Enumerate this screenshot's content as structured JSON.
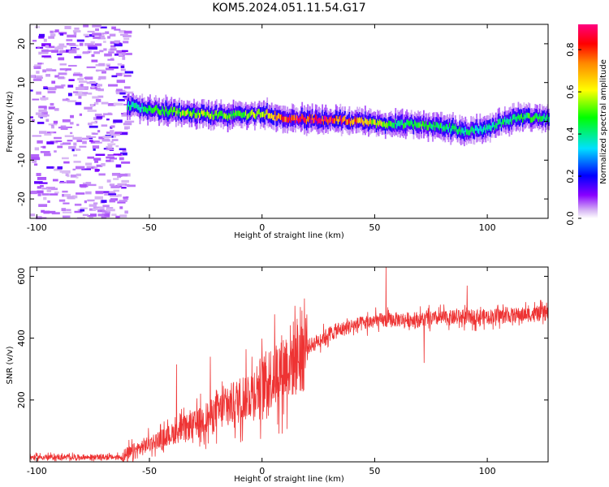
{
  "title": "KOM5.2024.051.11.54.G17",
  "chart_data": [
    {
      "type": "heatmap",
      "xlabel": "Height of straight line (km)",
      "ylabel": "Frequency (Hz)",
      "xlim": [
        -103,
        127
      ],
      "ylim": [
        -25,
        25
      ],
      "xticks": [
        -100,
        -50,
        0,
        50,
        100
      ],
      "yticks": [
        -20,
        -10,
        0,
        10,
        20
      ],
      "colorbar": {
        "label": "Normalized spectral amplitude",
        "range": [
          0,
          0.92
        ],
        "ticks": [
          "0.0",
          "0.2",
          "0.4",
          "0.6",
          "0.8"
        ],
        "colormap": "rainbow"
      },
      "ridge": {
        "x": [
          -60,
          -50,
          -40,
          -30,
          -20,
          -10,
          0,
          10,
          20,
          30,
          40,
          50,
          60,
          70,
          80,
          90,
          100,
          110,
          120,
          127
        ],
        "frequency": [
          4,
          3,
          2.5,
          2,
          1.5,
          1.5,
          2,
          1,
          0.5,
          0.5,
          0,
          -0.5,
          -0.5,
          -1,
          -1.5,
          -2.5,
          -2,
          0.5,
          1,
          0.5
        ],
        "amplitude": [
          0.35,
          0.4,
          0.5,
          0.55,
          0.5,
          0.45,
          0.6,
          0.8,
          0.9,
          0.85,
          0.75,
          0.6,
          0.4,
          0.45,
          0.4,
          0.35,
          0.35,
          0.4,
          0.45,
          0.4
        ]
      },
      "noise_region": {
        "x": [
          -103,
          -60
        ],
        "frequency": [
          -25,
          25
        ],
        "amplitude": 0.1
      }
    },
    {
      "type": "line",
      "xlabel": "Height of straight line (km)",
      "ylabel": "SNR (v/v)",
      "xlim": [
        -103,
        127
      ],
      "ylim": [
        0,
        630
      ],
      "xticks": [
        -100,
        -50,
        0,
        50,
        100
      ],
      "yticks": [
        200,
        400,
        600
      ],
      "color": "#ee3333",
      "trend": {
        "x": [
          -103,
          -62,
          -60,
          -50,
          -40,
          -30,
          -20,
          -10,
          0,
          10,
          20,
          30,
          40,
          50,
          60,
          70,
          80,
          100,
          127
        ],
        "y": [
          15,
          15,
          20,
          60,
          90,
          120,
          160,
          200,
          250,
          310,
          370,
          415,
          440,
          455,
          460,
          460,
          465,
          470,
          480
        ]
      },
      "spikes": [
        {
          "x": -38,
          "y": 315
        },
        {
          "x": -23,
          "y": 340
        },
        {
          "x": 55,
          "y": 630
        },
        {
          "x": 72,
          "y": 320
        },
        {
          "x": 91,
          "y": 570
        }
      ]
    }
  ]
}
